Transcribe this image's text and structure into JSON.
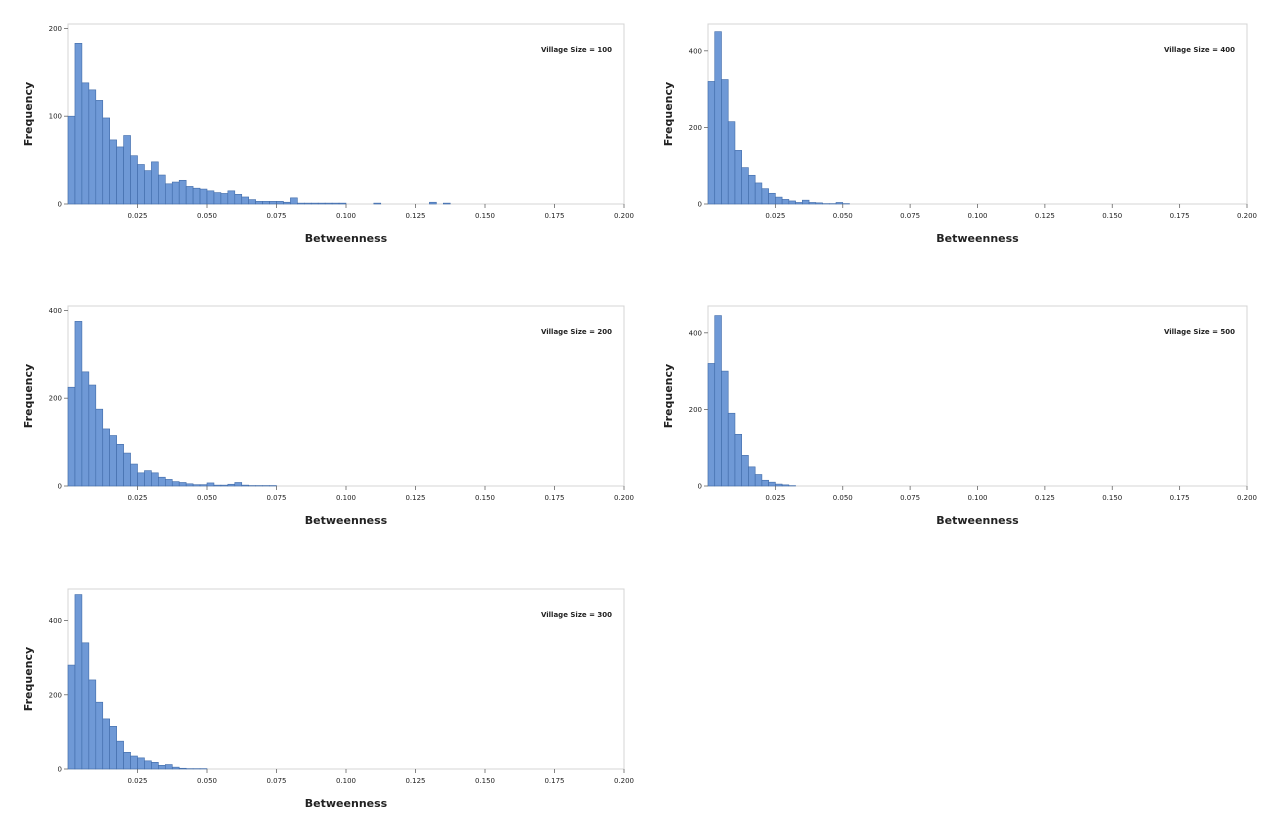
{
  "chart_data": [
    {
      "type": "bar",
      "annotation": "Village Size = 100",
      "xlabel": "Betweenness",
      "ylabel": "Frequency",
      "xlim": [
        0.0,
        0.2
      ],
      "ylim": [
        0,
        205
      ],
      "bin_start": 0.0,
      "bin_width": 0.0025,
      "xticks": [
        "0.025",
        "0.050",
        "0.075",
        "0.100",
        "0.125",
        "0.150",
        "0.175",
        "0.200"
      ],
      "xtick_values": [
        0.025,
        0.05,
        0.075,
        0.1,
        0.125,
        0.15,
        0.175,
        0.2
      ],
      "yticks": [
        "0",
        "100",
        "200"
      ],
      "ytick_values": [
        0,
        100,
        200
      ],
      "values": [
        100,
        183,
        138,
        130,
        118,
        98,
        73,
        65,
        78,
        55,
        45,
        38,
        48,
        33,
        23,
        25,
        27,
        20,
        18,
        17,
        15,
        13,
        12,
        15,
        11,
        8,
        5,
        3,
        3,
        3,
        3,
        2,
        7,
        1,
        1,
        1,
        1,
        1,
        1,
        1,
        0,
        0,
        0,
        0,
        1,
        0,
        0,
        0,
        0,
        0,
        0,
        0,
        2,
        0,
        1,
        0,
        0,
        0,
        0,
        0,
        0,
        0,
        0,
        0,
        0,
        0,
        0,
        0,
        0,
        0,
        0,
        0,
        0,
        0,
        0,
        0,
        0,
        0,
        0,
        0
      ]
    },
    {
      "type": "bar",
      "annotation": "Village Size = 200",
      "xlabel": "Betweenness",
      "ylabel": "Frequency",
      "xlim": [
        0.0,
        0.2
      ],
      "ylim": [
        0,
        410
      ],
      "bin_start": 0.0,
      "bin_width": 0.0025,
      "xticks": [
        "0.025",
        "0.050",
        "0.075",
        "0.100",
        "0.125",
        "0.150",
        "0.175",
        "0.200"
      ],
      "xtick_values": [
        0.025,
        0.05,
        0.075,
        0.1,
        0.125,
        0.15,
        0.175,
        0.2
      ],
      "yticks": [
        "0",
        "200",
        "400"
      ],
      "ytick_values": [
        0,
        200,
        400
      ],
      "values": [
        225,
        375,
        260,
        230,
        175,
        130,
        115,
        95,
        75,
        50,
        30,
        35,
        30,
        20,
        15,
        10,
        8,
        5,
        3,
        3,
        7,
        2,
        2,
        4,
        8,
        2,
        1,
        1,
        1,
        1,
        0,
        0,
        0,
        0,
        0,
        0,
        0,
        0,
        0,
        0,
        0,
        0,
        0,
        0,
        0,
        0,
        0,
        0,
        0,
        0,
        0,
        0,
        0,
        0,
        0,
        0,
        0,
        0,
        0,
        0,
        0,
        0,
        0,
        0,
        0,
        0,
        0,
        0,
        0,
        0,
        0,
        0,
        0,
        0,
        0,
        0,
        0,
        0,
        0,
        0
      ]
    },
    {
      "type": "bar",
      "annotation": "Village Size = 300",
      "xlabel": "Betweenness",
      "ylabel": "Frequency",
      "xlim": [
        0.0,
        0.2
      ],
      "ylim": [
        0,
        485
      ],
      "bin_start": 0.0,
      "bin_width": 0.0025,
      "xticks": [
        "0.025",
        "0.050",
        "0.075",
        "0.100",
        "0.125",
        "0.150",
        "0.175",
        "0.200"
      ],
      "xtick_values": [
        0.025,
        0.05,
        0.075,
        0.1,
        0.125,
        0.15,
        0.175,
        0.2
      ],
      "yticks": [
        "0",
        "200",
        "400"
      ],
      "ytick_values": [
        0,
        200,
        400
      ],
      "values": [
        280,
        470,
        340,
        240,
        180,
        135,
        115,
        75,
        45,
        35,
        30,
        22,
        18,
        10,
        12,
        5,
        2,
        1,
        1,
        1,
        0,
        0,
        0,
        0,
        0,
        0,
        0,
        0,
        0,
        0,
        0,
        0,
        0,
        0,
        0,
        0,
        0,
        0,
        0,
        0,
        0,
        0,
        0,
        0,
        0,
        0,
        0,
        0,
        0,
        0,
        0,
        0,
        0,
        0,
        0,
        0,
        0,
        0,
        0,
        0,
        0,
        0,
        0,
        0,
        0,
        0,
        0,
        0,
        0,
        0,
        0,
        0,
        0,
        0,
        0,
        0,
        0,
        0,
        0,
        0
      ]
    },
    {
      "type": "bar",
      "annotation": "Village Size = 400",
      "xlabel": "Betweenness",
      "ylabel": "Frequency",
      "xlim": [
        0.0,
        0.2
      ],
      "ylim": [
        0,
        470
      ],
      "bin_start": 0.0,
      "bin_width": 0.0025,
      "xticks": [
        "0.025",
        "0.050",
        "0.075",
        "0.100",
        "0.125",
        "0.150",
        "0.175",
        "0.200"
      ],
      "xtick_values": [
        0.025,
        0.05,
        0.075,
        0.1,
        0.125,
        0.15,
        0.175,
        0.2
      ],
      "yticks": [
        "0",
        "200",
        "400"
      ],
      "ytick_values": [
        0,
        200,
        400
      ],
      "values": [
        320,
        450,
        325,
        215,
        140,
        95,
        75,
        55,
        40,
        28,
        18,
        12,
        8,
        4,
        10,
        4,
        3,
        1,
        1,
        4,
        1,
        0,
        0,
        0,
        0,
        0,
        0,
        0,
        0,
        0,
        0,
        0,
        0,
        0,
        0,
        0,
        0,
        0,
        0,
        0,
        0,
        0,
        0,
        0,
        0,
        0,
        0,
        0,
        0,
        0,
        0,
        0,
        0,
        0,
        0,
        0,
        0,
        0,
        0,
        0,
        0,
        0,
        0,
        0,
        0,
        0,
        0,
        0,
        0,
        0,
        0,
        0,
        0,
        0,
        0,
        0,
        0,
        0,
        0,
        0
      ]
    },
    {
      "type": "bar",
      "annotation": "Village Size = 500",
      "xlabel": "Betweenness",
      "ylabel": "Frequency",
      "xlim": [
        0.0,
        0.2
      ],
      "ylim": [
        0,
        470
      ],
      "bin_start": 0.0,
      "bin_width": 0.0025,
      "xticks": [
        "0.025",
        "0.050",
        "0.075",
        "0.100",
        "0.125",
        "0.150",
        "0.175",
        "0.200"
      ],
      "xtick_values": [
        0.025,
        0.05,
        0.075,
        0.1,
        0.125,
        0.15,
        0.175,
        0.2
      ],
      "yticks": [
        "0",
        "200",
        "400"
      ],
      "ytick_values": [
        0,
        200,
        400
      ],
      "values": [
        320,
        445,
        300,
        190,
        135,
        80,
        50,
        30,
        15,
        10,
        5,
        3,
        1,
        0,
        0,
        0,
        0,
        0,
        0,
        0,
        0,
        0,
        0,
        0,
        0,
        0,
        0,
        0,
        0,
        0,
        0,
        0,
        0,
        0,
        0,
        0,
        0,
        0,
        0,
        0,
        0,
        0,
        0,
        0,
        0,
        0,
        0,
        0,
        0,
        0,
        0,
        0,
        0,
        0,
        0,
        0,
        0,
        0,
        0,
        0,
        0,
        0,
        0,
        0,
        0,
        0,
        0,
        0,
        0,
        0,
        0,
        0,
        0,
        0,
        0,
        0,
        0,
        0,
        0,
        0
      ]
    }
  ],
  "colors": {
    "bar_fill": "#6f99d6",
    "bar_edge": "#3f6aa8",
    "frame": "#d4d4d4"
  }
}
